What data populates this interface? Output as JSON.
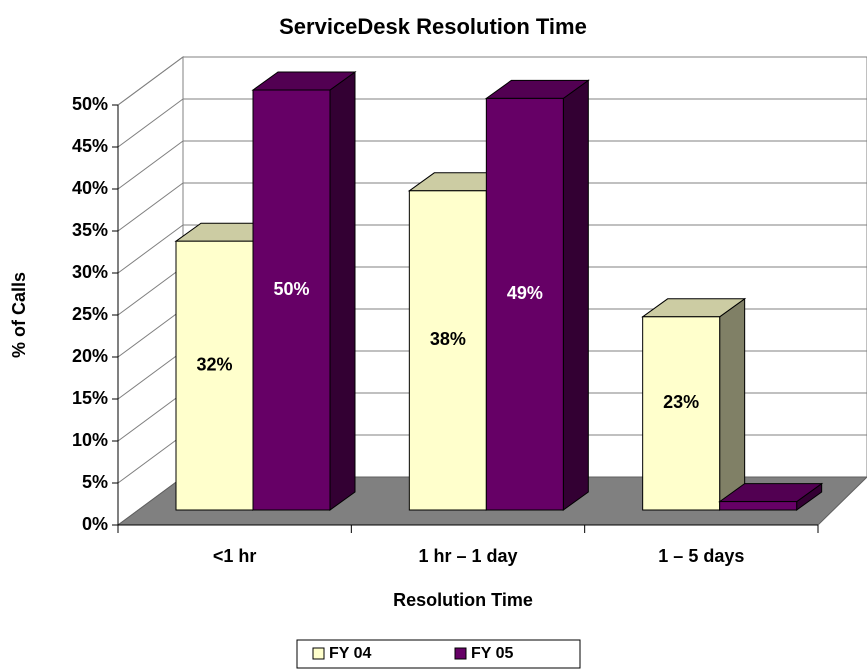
{
  "chart_data": {
    "type": "bar3d",
    "title": "ServiceDesk Resolution Time",
    "xlabel": "Resolution Time",
    "ylabel": "% of Calls",
    "categories": [
      "<1 hr",
      "1 hr – 1 day",
      "1 – 5 days"
    ],
    "series": [
      {
        "name": "FY 04",
        "color": "#FFFFCC",
        "values": [
          32,
          38,
          23
        ],
        "value_labels": [
          "32%",
          "38%",
          "23%"
        ]
      },
      {
        "name": "FY 05",
        "color": "#660066",
        "values": [
          50,
          49,
          1
        ],
        "value_labels": [
          "50%",
          "49%",
          null
        ]
      }
    ],
    "ylim": [
      0,
      50
    ],
    "yticks": [
      {
        "value": 0,
        "label": "0%"
      },
      {
        "value": 5,
        "label": "5%"
      },
      {
        "value": 10,
        "label": "10%"
      },
      {
        "value": 15,
        "label": "15%"
      },
      {
        "value": 20,
        "label": "20%"
      },
      {
        "value": 25,
        "label": "25%"
      },
      {
        "value": 30,
        "label": "30%"
      },
      {
        "value": 35,
        "label": "35%"
      },
      {
        "value": 40,
        "label": "40%"
      },
      {
        "value": 45,
        "label": "45%"
      },
      {
        "value": 50,
        "label": "50%"
      }
    ],
    "grid": true,
    "legend": "bottom"
  }
}
